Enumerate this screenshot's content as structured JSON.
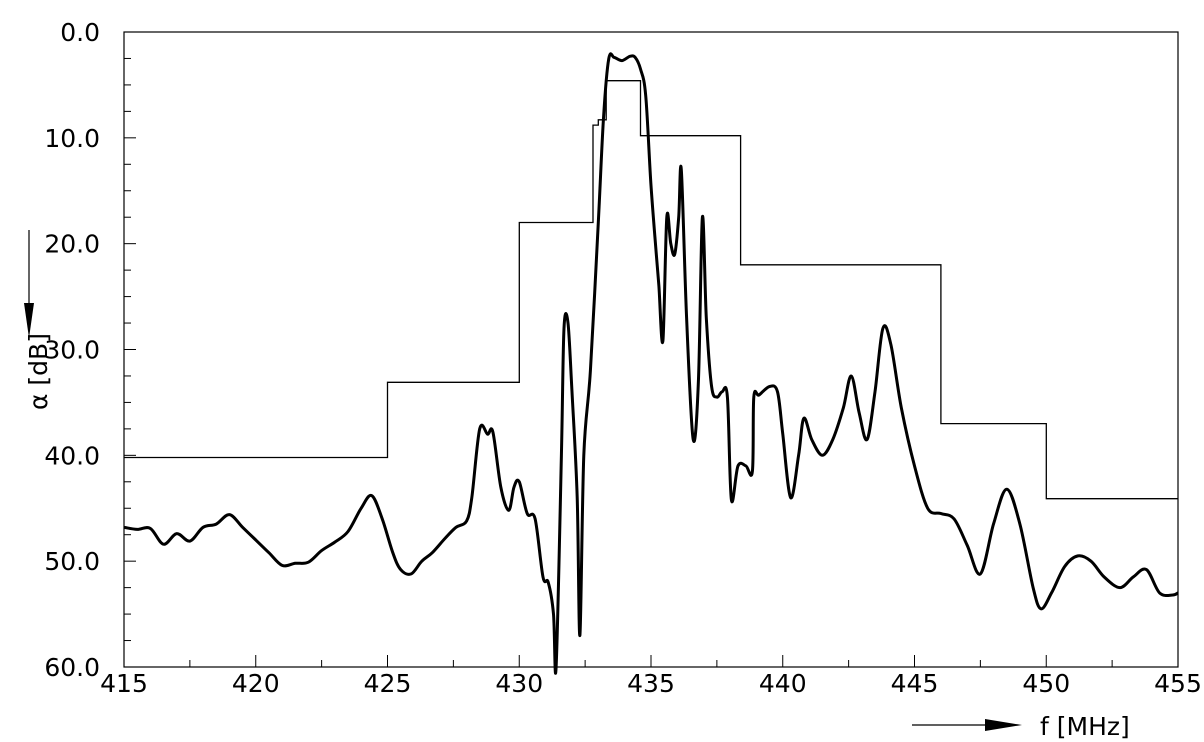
{
  "chart_data": {
    "type": "line",
    "title": "",
    "xlabel": "f [MHz]",
    "ylabel": "α [dB]",
    "xlim": [
      415,
      455
    ],
    "ylim": [
      0,
      60
    ],
    "y_inverted": true,
    "grid": false,
    "x_ticks": [
      415,
      420,
      425,
      430,
      435,
      440,
      445,
      450,
      455
    ],
    "x_tick_labels": [
      "415",
      "420",
      "425",
      "430",
      "435",
      "440",
      "445",
      "450",
      "455"
    ],
    "y_ticks": [
      0,
      10,
      20,
      30,
      40,
      50,
      60
    ],
    "y_tick_labels": [
      "0.0",
      "10.0",
      "20.0",
      "30.0",
      "40.0",
      "50.0",
      "60.0"
    ],
    "series": [
      {
        "style": "step",
        "points": [
          [
            415,
            40.2
          ],
          [
            425,
            40.2
          ],
          [
            425,
            33.1
          ],
          [
            430,
            33.1
          ],
          [
            430,
            18.0
          ],
          [
            432.8,
            18.0
          ],
          [
            432.8,
            8.8
          ],
          [
            433.0,
            8.8
          ],
          [
            433.0,
            8.3
          ],
          [
            433.3,
            8.3
          ],
          [
            433.3,
            4.6
          ],
          [
            434.6,
            4.6
          ],
          [
            434.6,
            9.8
          ],
          [
            438.4,
            9.8
          ],
          [
            438.4,
            22.0
          ],
          [
            446.0,
            22.0
          ],
          [
            446.0,
            37.0
          ],
          [
            450.0,
            37.0
          ],
          [
            450.0,
            44.1
          ],
          [
            455,
            44.1
          ]
        ]
      },
      {
        "style": "response",
        "points": [
          [
            415,
            46.8
          ],
          [
            415.5,
            47.0
          ],
          [
            416,
            46.9
          ],
          [
            416.5,
            48.4
          ],
          [
            417,
            47.4
          ],
          [
            417.5,
            48.1
          ],
          [
            418,
            46.8
          ],
          [
            418.5,
            46.5
          ],
          [
            419,
            45.6
          ],
          [
            419.5,
            46.8
          ],
          [
            420,
            48.0
          ],
          [
            420.5,
            49.2
          ],
          [
            421,
            50.4
          ],
          [
            421.5,
            50.2
          ],
          [
            422,
            50.1
          ],
          [
            422.5,
            49.0
          ],
          [
            423,
            48.2
          ],
          [
            423.5,
            47.2
          ],
          [
            424,
            45.0
          ],
          [
            424.4,
            43.8
          ],
          [
            424.8,
            46.0
          ],
          [
            425.2,
            49.2
          ],
          [
            425.5,
            50.8
          ],
          [
            425.9,
            51.2
          ],
          [
            426.3,
            50.0
          ],
          [
            426.7,
            49.2
          ],
          [
            427.2,
            47.8
          ],
          [
            427.6,
            46.8
          ],
          [
            428.0,
            46.2
          ],
          [
            428.2,
            44.0
          ],
          [
            428.5,
            37.5
          ],
          [
            428.8,
            38.0
          ],
          [
            429.0,
            37.8
          ],
          [
            429.3,
            43.0
          ],
          [
            429.6,
            45.2
          ],
          [
            429.8,
            43.0
          ],
          [
            430.0,
            42.5
          ],
          [
            430.3,
            45.5
          ],
          [
            430.6,
            46.0
          ],
          [
            430.9,
            51.5
          ],
          [
            431.1,
            52.0
          ],
          [
            431.3,
            55.0
          ],
          [
            431.4,
            60.0
          ],
          [
            431.6,
            40.0
          ],
          [
            431.7,
            28.0
          ],
          [
            431.85,
            27.5
          ],
          [
            432.0,
            34.0
          ],
          [
            432.2,
            44.0
          ],
          [
            432.3,
            57.0
          ],
          [
            432.45,
            40.0
          ],
          [
            432.7,
            32.0
          ],
          [
            433.0,
            18.0
          ],
          [
            433.2,
            8.0
          ],
          [
            433.4,
            2.5
          ],
          [
            433.6,
            2.4
          ],
          [
            433.9,
            2.7
          ],
          [
            434.2,
            2.3
          ],
          [
            434.4,
            2.4
          ],
          [
            434.6,
            3.5
          ],
          [
            434.8,
            6.0
          ],
          [
            435.0,
            14.5
          ],
          [
            435.2,
            21.0
          ],
          [
            435.3,
            24.0
          ],
          [
            435.45,
            29.2
          ],
          [
            435.6,
            17.5
          ],
          [
            435.75,
            20.0
          ],
          [
            435.9,
            21.0
          ],
          [
            436.05,
            17.5
          ],
          [
            436.15,
            13.0
          ],
          [
            436.35,
            27.0
          ],
          [
            436.6,
            38.5
          ],
          [
            436.8,
            33.0
          ],
          [
            436.95,
            17.5
          ],
          [
            437.1,
            27.0
          ],
          [
            437.3,
            33.5
          ],
          [
            437.5,
            34.5
          ],
          [
            437.7,
            34.0
          ],
          [
            437.9,
            34.5
          ],
          [
            438.05,
            44.2
          ],
          [
            438.3,
            41.0
          ],
          [
            438.6,
            41.0
          ],
          [
            438.85,
            41.5
          ],
          [
            438.9,
            34.5
          ],
          [
            439.1,
            34.3
          ],
          [
            439.5,
            33.5
          ],
          [
            439.8,
            34.0
          ],
          [
            440.0,
            38.0
          ],
          [
            440.3,
            44.0
          ],
          [
            440.6,
            40.0
          ],
          [
            440.8,
            36.5
          ],
          [
            441.1,
            38.5
          ],
          [
            441.5,
            40.0
          ],
          [
            441.9,
            38.5
          ],
          [
            442.3,
            35.5
          ],
          [
            442.6,
            32.5
          ],
          [
            442.9,
            36.0
          ],
          [
            443.2,
            38.5
          ],
          [
            443.5,
            34.0
          ],
          [
            443.8,
            28.0
          ],
          [
            444.1,
            29.5
          ],
          [
            444.5,
            35.5
          ],
          [
            445.0,
            41.0
          ],
          [
            445.5,
            45.0
          ],
          [
            446.0,
            45.5
          ],
          [
            446.5,
            46.0
          ],
          [
            447.0,
            48.5
          ],
          [
            447.5,
            51.2
          ],
          [
            448.0,
            46.5
          ],
          [
            448.5,
            43.2
          ],
          [
            449.0,
            46.5
          ],
          [
            449.5,
            52.5
          ],
          [
            449.8,
            54.5
          ],
          [
            450.2,
            53.0
          ],
          [
            450.7,
            50.5
          ],
          [
            451.2,
            49.5
          ],
          [
            451.7,
            50.0
          ],
          [
            452.2,
            51.5
          ],
          [
            452.8,
            52.5
          ],
          [
            453.3,
            51.5
          ],
          [
            453.8,
            50.8
          ],
          [
            454.3,
            53.0
          ],
          [
            454.8,
            53.2
          ],
          [
            455,
            53.0
          ]
        ]
      }
    ]
  }
}
